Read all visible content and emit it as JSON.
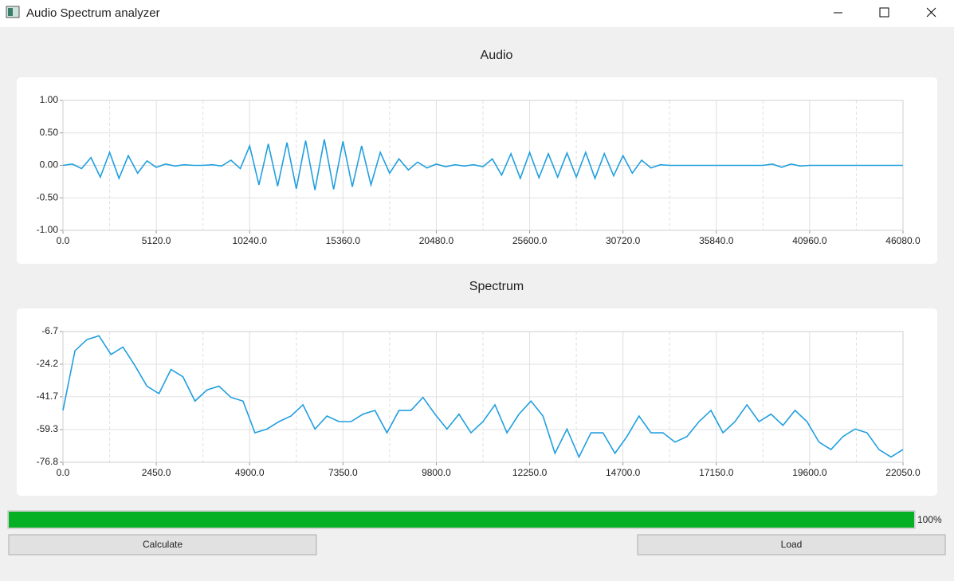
{
  "window": {
    "title": "Audio Spectrum analyzer"
  },
  "chart_data": [
    {
      "type": "line",
      "title": "Audio",
      "color": "#209fdf",
      "grid": true,
      "x": [
        0,
        512,
        1024,
        1536,
        2048,
        2560,
        3072,
        3584,
        4096,
        4608,
        5120,
        5632,
        6144,
        6656,
        7168,
        7680,
        8192,
        8704,
        9216,
        9728,
        10240,
        10752,
        11264,
        11776,
        12288,
        12800,
        13312,
        13824,
        14336,
        14848,
        15360,
        15872,
        16384,
        16896,
        17408,
        17920,
        18432,
        18944,
        19456,
        19968,
        20480,
        20992,
        21504,
        22016,
        22528,
        23040,
        23552,
        24064,
        24576,
        25088,
        25600,
        26112,
        26624,
        27136,
        27648,
        28160,
        28672,
        29184,
        29696,
        30208,
        30720,
        31232,
        31744,
        32256,
        32768,
        33280,
        33792,
        34304,
        34816,
        35328,
        35840,
        36352,
        36864,
        37376,
        37888,
        38400,
        38912,
        39424,
        39936,
        40448,
        40960,
        41472,
        41984,
        42496,
        43008,
        43520,
        44032,
        44544,
        45056,
        45568,
        46080
      ],
      "values": [
        0,
        0.02,
        -0.05,
        0.12,
        -0.18,
        0.2,
        -0.2,
        0.15,
        -0.12,
        0.07,
        -0.03,
        0.02,
        -0.01,
        0.01,
        0,
        0,
        0.01,
        -0.01,
        0.08,
        -0.05,
        0.3,
        -0.3,
        0.33,
        -0.32,
        0.35,
        -0.36,
        0.38,
        -0.38,
        0.4,
        -0.37,
        0.37,
        -0.33,
        0.3,
        -0.3,
        0.2,
        -0.12,
        0.1,
        -0.07,
        0.05,
        -0.04,
        0.02,
        -0.02,
        0.01,
        -0.01,
        0.01,
        -0.02,
        0.1,
        -0.15,
        0.18,
        -0.2,
        0.2,
        -0.19,
        0.18,
        -0.18,
        0.19,
        -0.18,
        0.2,
        -0.2,
        0.18,
        -0.16,
        0.15,
        -0.12,
        0.08,
        -0.04,
        0.01,
        0,
        0,
        0,
        0,
        0,
        0,
        0,
        0,
        0,
        0,
        0,
        0.02,
        -0.03,
        0.02,
        -0.01,
        0,
        0,
        0,
        0,
        0,
        0,
        0,
        0,
        0,
        0,
        0
      ],
      "xlim": [
        0,
        46080
      ],
      "ylim": [
        -1,
        1
      ],
      "xticks": [
        {
          "value": 0,
          "label": "0.0"
        },
        {
          "value": 5120,
          "label": "5120.0"
        },
        {
          "value": 10240,
          "label": "10240.0"
        },
        {
          "value": 15360,
          "label": "15360.0"
        },
        {
          "value": 20480,
          "label": "20480.0"
        },
        {
          "value": 25600,
          "label": "25600.0"
        },
        {
          "value": 30720,
          "label": "30720.0"
        },
        {
          "value": 35840,
          "label": "35840.0"
        },
        {
          "value": 40960,
          "label": "40960.0"
        },
        {
          "value": 46080,
          "label": "46080.0"
        }
      ],
      "yticks": [
        {
          "value": 1,
          "label": "1.00"
        },
        {
          "value": 0.5,
          "label": "0.50"
        },
        {
          "value": 0,
          "label": "0.00"
        },
        {
          "value": -0.5,
          "label": "-0.50"
        },
        {
          "value": -1,
          "label": "-1.00"
        }
      ]
    },
    {
      "type": "line",
      "title": "Spectrum",
      "color": "#209fdf",
      "grid": true,
      "x": [
        0,
        315,
        630,
        945,
        1260,
        1575,
        1890,
        2205,
        2520,
        2835,
        3150,
        3465,
        3780,
        4095,
        4410,
        4725,
        5040,
        5355,
        5670,
        5985,
        6300,
        6615,
        6930,
        7245,
        7560,
        7875,
        8190,
        8505,
        8820,
        9135,
        9450,
        9765,
        10080,
        10395,
        10710,
        11025,
        11340,
        11655,
        11970,
        12285,
        12600,
        12915,
        13230,
        13545,
        13860,
        14175,
        14490,
        14805,
        15120,
        15435,
        15750,
        16065,
        16380,
        16695,
        17010,
        17325,
        17640,
        17955,
        18270,
        18585,
        18900,
        19215,
        19530,
        19845,
        20160,
        20475,
        20790,
        21105,
        21420,
        21735,
        22050
      ],
      "values": [
        -49,
        -17,
        -11,
        -9,
        -19,
        -15,
        -25,
        -36,
        -40,
        -27,
        -31,
        -44,
        -38,
        -36,
        -42,
        -44,
        -61,
        -59,
        -55,
        -52,
        -46,
        -59,
        -52,
        -55,
        -55,
        -51,
        -49,
        -61,
        -49,
        -49,
        -42,
        -51,
        -59,
        -51,
        -61,
        -55,
        -46,
        -61,
        -51,
        -44,
        -52,
        -72,
        -59,
        -74,
        -61,
        -61,
        -72,
        -63,
        -52,
        -61,
        -61,
        -66,
        -63,
        -55,
        -49,
        -61,
        -55,
        -46,
        -55,
        -51,
        -57,
        -49,
        -55,
        -66,
        -70,
        -63,
        -59,
        -61,
        -70,
        -74,
        -70
      ],
      "xlim": [
        0,
        22050
      ],
      "ylim": [
        -76.8,
        -6.7
      ],
      "xticks": [
        {
          "value": 0,
          "label": "0.0"
        },
        {
          "value": 2450,
          "label": "2450.0"
        },
        {
          "value": 4900,
          "label": "4900.0"
        },
        {
          "value": 7350,
          "label": "7350.0"
        },
        {
          "value": 9800,
          "label": "9800.0"
        },
        {
          "value": 12250,
          "label": "12250.0"
        },
        {
          "value": 14700,
          "label": "14700.0"
        },
        {
          "value": 17150,
          "label": "17150.0"
        },
        {
          "value": 19600,
          "label": "19600.0"
        },
        {
          "value": 22050,
          "label": "22050.0"
        }
      ],
      "yticks": [
        -6.7,
        -24.2,
        -41.7,
        -59.3,
        -76.8
      ]
    }
  ],
  "progress": {
    "value": 100,
    "label": "100%"
  },
  "buttons": [
    {
      "label": "Calculate"
    },
    {
      "label": "Load"
    }
  ]
}
